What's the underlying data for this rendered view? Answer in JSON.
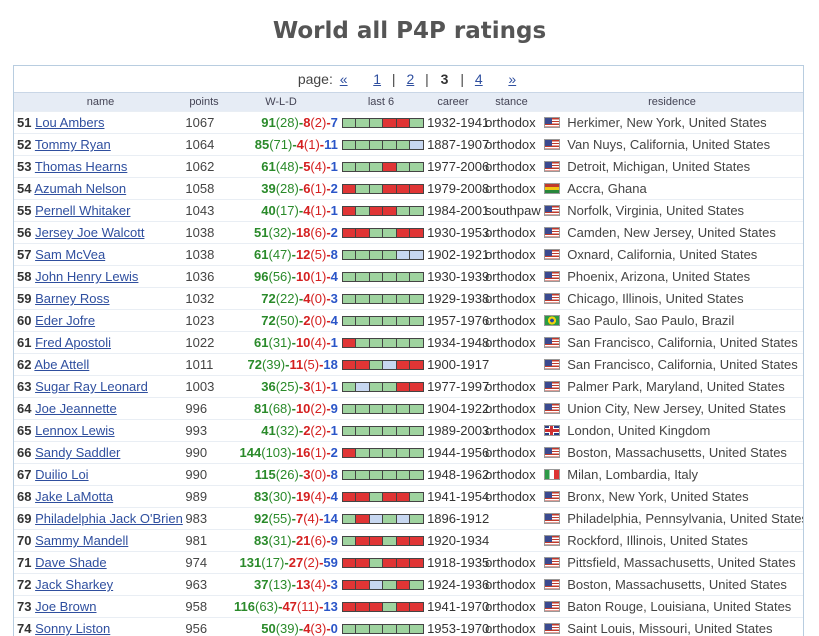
{
  "page_title": "World all P4P ratings",
  "pager": {
    "label": "page:",
    "prev": "«",
    "next": "»",
    "pages": [
      "1",
      "2",
      "3",
      "4"
    ],
    "current": "3"
  },
  "columns": {
    "name": "name",
    "points": "points",
    "wld": "W-L-D",
    "last6": "last 6",
    "career": "career",
    "stance": "stance",
    "residence": "residence"
  },
  "rows": [
    {
      "rank": "51",
      "name": "Lou Ambers",
      "points": "1067",
      "w": "91",
      "wko": "(28)",
      "l": "8",
      "lko": "(2)",
      "d": "7",
      "last6": "WWWLLW",
      "career": "1932-1941",
      "stance": "orthodox",
      "flag": "us",
      "residence": "Herkimer, New York, United States"
    },
    {
      "rank": "52",
      "name": "Tommy Ryan",
      "points": "1064",
      "w": "85",
      "wko": "(71)",
      "l": "4",
      "lko": "(1)",
      "d": "11",
      "last6": "WWWWWD",
      "career": "1887-1907",
      "stance": "orthodox",
      "flag": "us",
      "residence": "Van Nuys, California, United States"
    },
    {
      "rank": "53",
      "name": "Thomas Hearns",
      "points": "1062",
      "w": "61",
      "wko": "(48)",
      "l": "5",
      "lko": "(4)",
      "d": "1",
      "last6": "WWWLWW",
      "career": "1977-2006",
      "stance": "orthodox",
      "flag": "us",
      "residence": "Detroit, Michigan, United States"
    },
    {
      "rank": "54",
      "name": "Azumah Nelson",
      "points": "1058",
      "w": "39",
      "wko": "(28)",
      "l": "6",
      "lko": "(1)",
      "d": "2",
      "last6": "LWWLLL",
      "career": "1979-2008",
      "stance": "orthodox",
      "flag": "gh",
      "residence": "Accra, Ghana"
    },
    {
      "rank": "55",
      "name": "Pernell Whitaker",
      "points": "1043",
      "w": "40",
      "wko": "(17)",
      "l": "4",
      "lko": "(1)",
      "d": "1",
      "last6": "LWLLWW",
      "career": "1984-2001",
      "stance": "southpaw",
      "flag": "us",
      "residence": "Norfolk, Virginia, United States"
    },
    {
      "rank": "56",
      "name": "Jersey Joe Walcott",
      "points": "1038",
      "w": "51",
      "wko": "(32)",
      "l": "18",
      "lko": "(6)",
      "d": "2",
      "last6": "LLWWLL",
      "career": "1930-1953",
      "stance": "orthodox",
      "flag": "us",
      "residence": "Camden, New Jersey, United States"
    },
    {
      "rank": "57",
      "name": "Sam McVea",
      "points": "1038",
      "w": "61",
      "wko": "(47)",
      "l": "12",
      "lko": "(5)",
      "d": "8",
      "last6": "WWWWDD",
      "career": "1902-1921",
      "stance": "orthodox",
      "flag": "us",
      "residence": "Oxnard, California, United States"
    },
    {
      "rank": "58",
      "name": "John Henry Lewis",
      "points": "1036",
      "w": "96",
      "wko": "(56)",
      "l": "10",
      "lko": "(1)",
      "d": "4",
      "last6": "WWWWWW",
      "career": "1930-1939",
      "stance": "orthodox",
      "flag": "us",
      "residence": "Phoenix, Arizona, United States"
    },
    {
      "rank": "59",
      "name": "Barney Ross",
      "points": "1032",
      "w": "72",
      "wko": "(22)",
      "l": "4",
      "lko": "(0)",
      "d": "3",
      "last6": "WWWWWW",
      "career": "1929-1938",
      "stance": "orthodox",
      "flag": "us",
      "residence": "Chicago, Illinois, United States"
    },
    {
      "rank": "60",
      "name": "Eder Jofre",
      "points": "1023",
      "w": "72",
      "wko": "(50)",
      "l": "2",
      "lko": "(0)",
      "d": "4",
      "last6": "WWWWWW",
      "career": "1957-1976",
      "stance": "orthodox",
      "flag": "br",
      "residence": "Sao Paulo, Sao Paulo, Brazil"
    },
    {
      "rank": "61",
      "name": "Fred Apostoli",
      "points": "1022",
      "w": "61",
      "wko": "(31)",
      "l": "10",
      "lko": "(4)",
      "d": "1",
      "last6": "LWWWWW",
      "career": "1934-1948",
      "stance": "orthodox",
      "flag": "us",
      "residence": "San Francisco, California, United States"
    },
    {
      "rank": "62",
      "name": "Abe Attell",
      "points": "1011",
      "w": "72",
      "wko": "(39)",
      "l": "11",
      "lko": "(5)",
      "d": "18",
      "last6": "LLWDLL",
      "career": "1900-1917",
      "stance": "",
      "flag": "us",
      "residence": "San Francisco, California, United States"
    },
    {
      "rank": "63",
      "name": "Sugar Ray Leonard",
      "points": "1003",
      "w": "36",
      "wko": "(25)",
      "l": "3",
      "lko": "(1)",
      "d": "1",
      "last6": "WDWWLL",
      "career": "1977-1997",
      "stance": "orthodox",
      "flag": "us",
      "residence": "Palmer Park, Maryland, United States"
    },
    {
      "rank": "64",
      "name": "Joe Jeannette",
      "points": "996",
      "w": "81",
      "wko": "(68)",
      "l": "10",
      "lko": "(2)",
      "d": "9",
      "last6": "WWWWWW",
      "career": "1904-1922",
      "stance": "orthodox",
      "flag": "us",
      "residence": "Union City, New Jersey, United States"
    },
    {
      "rank": "65",
      "name": "Lennox Lewis",
      "points": "993",
      "w": "41",
      "wko": "(32)",
      "l": "2",
      "lko": "(2)",
      "d": "1",
      "last6": "WWWWWW",
      "career": "1989-2003",
      "stance": "orthodox",
      "flag": "gb",
      "residence": "London, United Kingdom"
    },
    {
      "rank": "66",
      "name": "Sandy Saddler",
      "points": "990",
      "w": "144",
      "wko": "(103)",
      "l": "16",
      "lko": "(1)",
      "d": "2",
      "last6": "LWWWWW",
      "career": "1944-1956",
      "stance": "orthodox",
      "flag": "us",
      "residence": "Boston, Massachusetts, United States"
    },
    {
      "rank": "67",
      "name": "Duilio Loi",
      "points": "990",
      "w": "115",
      "wko": "(26)",
      "l": "3",
      "lko": "(0)",
      "d": "8",
      "last6": "WWWWWW",
      "career": "1948-1962",
      "stance": "orthodox",
      "flag": "it",
      "residence": "Milan, Lombardia, Italy"
    },
    {
      "rank": "68",
      "name": "Jake LaMotta",
      "points": "989",
      "w": "83",
      "wko": "(30)",
      "l": "19",
      "lko": "(4)",
      "d": "4",
      "last6": "LLWLLW",
      "career": "1941-1954",
      "stance": "orthodox",
      "flag": "us",
      "residence": "Bronx, New York, United States"
    },
    {
      "rank": "69",
      "name": "Philadelphia Jack O'Brien",
      "points": "983",
      "w": "92",
      "wko": "(55)",
      "l": "7",
      "lko": "(4)",
      "d": "14",
      "last6": "WLDWDW",
      "career": "1896-1912",
      "stance": "",
      "flag": "us",
      "residence": "Philadelphia, Pennsylvania, United States"
    },
    {
      "rank": "70",
      "name": "Sammy Mandell",
      "points": "981",
      "w": "83",
      "wko": "(31)",
      "l": "21",
      "lko": "(6)",
      "d": "9",
      "last6": "WLLWLL",
      "career": "1920-1934",
      "stance": "",
      "flag": "us",
      "residence": "Rockford, Illinois, United States"
    },
    {
      "rank": "71",
      "name": "Dave Shade",
      "points": "974",
      "w": "131",
      "wko": "(17)",
      "l": "27",
      "lko": "(2)",
      "d": "59",
      "last6": "LLWLLL",
      "career": "1918-1935",
      "stance": "orthodox",
      "flag": "us",
      "residence": "Pittsfield, Massachusetts, United States"
    },
    {
      "rank": "72",
      "name": "Jack Sharkey",
      "points": "963",
      "w": "37",
      "wko": "(13)",
      "l": "13",
      "lko": "(4)",
      "d": "3",
      "last6": "LLDWLW",
      "career": "1924-1936",
      "stance": "orthodox",
      "flag": "us",
      "residence": "Boston, Massachusetts, United States"
    },
    {
      "rank": "73",
      "name": "Joe Brown",
      "points": "958",
      "w": "116",
      "wko": "(63)",
      "l": "47",
      "lko": "(11)",
      "d": "13",
      "last6": "LLLWLL",
      "career": "1941-1970",
      "stance": "orthodox",
      "flag": "us",
      "residence": "Baton Rouge, Louisiana, United States"
    },
    {
      "rank": "74",
      "name": "Sonny Liston",
      "points": "956",
      "w": "50",
      "wko": "(39)",
      "l": "4",
      "lko": "(3)",
      "d": "0",
      "last6": "WWWWWW",
      "career": "1953-1970",
      "stance": "orthodox",
      "flag": "us",
      "residence": "Saint Louis, Missouri, United States"
    }
  ]
}
